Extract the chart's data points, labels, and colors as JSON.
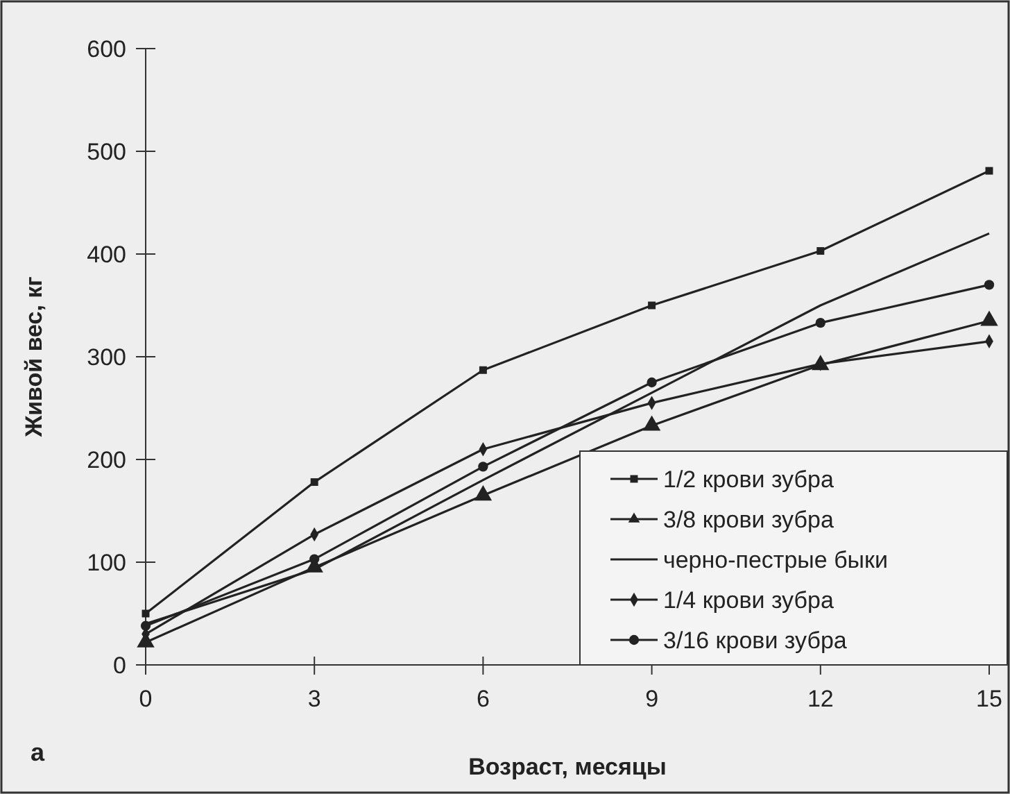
{
  "chart_data": {
    "type": "line",
    "xlabel": "Возраст, месяцы",
    "ylabel": "Живой вес, кг",
    "x": [
      0,
      3,
      6,
      9,
      12,
      15
    ],
    "xlim": [
      0,
      15
    ],
    "xticks": [
      0,
      3,
      6,
      9,
      12,
      15
    ],
    "ylim": [
      0,
      600
    ],
    "yticks": [
      0,
      100,
      200,
      300,
      400,
      500,
      600
    ],
    "grid": false,
    "legend": "bottom right",
    "annotations": [
      "а"
    ],
    "series": [
      {
        "name": "1/2 крови зубра",
        "color": "#222222",
        "marker": "square",
        "values": [
          50,
          178,
          287,
          350,
          403,
          481
        ]
      },
      {
        "name": "3/8 крови зубра",
        "color": "#222222",
        "marker": "triangle",
        "values": [
          22,
          95,
          165,
          233,
          292,
          335
        ]
      },
      {
        "name": "черно-пестрые быки",
        "color": "#222222",
        "marker": "none",
        "values": [
          40,
          93,
          180,
          265,
          350,
          420
        ]
      },
      {
        "name": "1/4 крови зубра",
        "color": "#222222",
        "marker": "diamond",
        "values": [
          30,
          127,
          210,
          255,
          293,
          315
        ]
      },
      {
        "name": "3/16 крови зубра",
        "color": "#222222",
        "marker": "circle",
        "values": [
          38,
          103,
          193,
          275,
          333,
          370
        ]
      }
    ]
  }
}
